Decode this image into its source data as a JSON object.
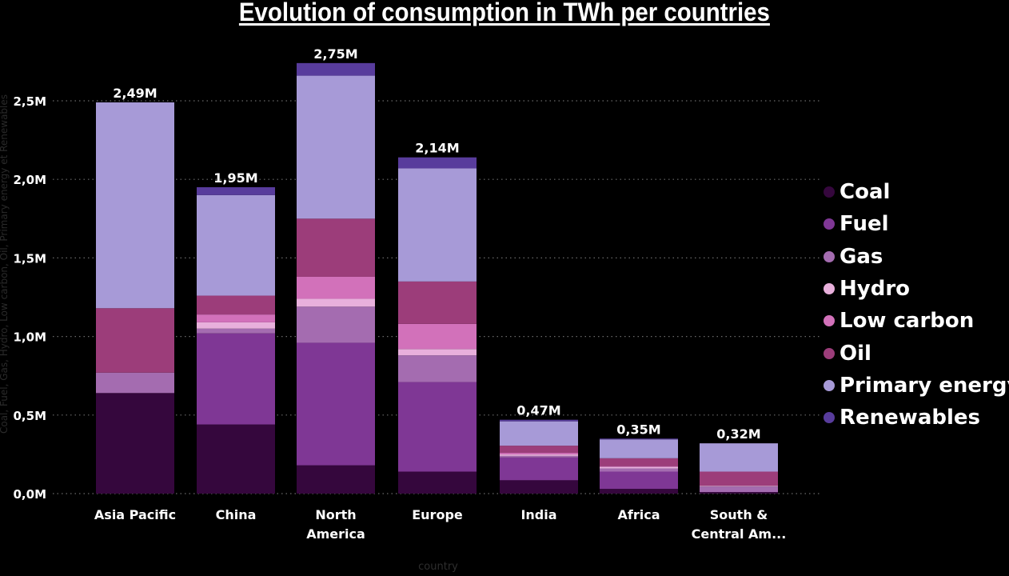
{
  "chart_data": {
    "type": "bar",
    "stacked": true,
    "title": "Evolution of consumption in TWh per countries",
    "xlabel": "country",
    "ylabel": "Coal, Fuel, Gas, Hydro, Low carbon, Oil, Primary energy et Renewables",
    "ylim": [
      0,
      2800000
    ],
    "y_ticks": [
      {
        "value": 0,
        "label": "0,0M"
      },
      {
        "value": 500000,
        "label": "0,5M"
      },
      {
        "value": 1000000,
        "label": "1,0M"
      },
      {
        "value": 1500000,
        "label": "1,5M"
      },
      {
        "value": 2000000,
        "label": "2,0M"
      },
      {
        "value": 2500000,
        "label": "2,5M"
      }
    ],
    "grid": true,
    "legend_position": "right",
    "categories": [
      "Asia Pacific",
      "China",
      "North America",
      "Europe",
      "India",
      "Africa",
      "South & Central Am..."
    ],
    "category_lines": [
      [
        "Asia Pacific"
      ],
      [
        "China"
      ],
      [
        "North",
        "America"
      ],
      [
        "Europe"
      ],
      [
        "India"
      ],
      [
        "Africa"
      ],
      [
        "South &",
        "Central Am..."
      ]
    ],
    "totals": [
      "2,49M",
      "1,95M",
      "2,75M",
      "2,14M",
      "0,47M",
      "0,35M",
      "0,32M"
    ],
    "series": [
      {
        "name": "Coal",
        "color": "#35073d",
        "values": [
          640000,
          440000,
          180000,
          140000,
          85000,
          30000,
          10000
        ]
      },
      {
        "name": "Fuel",
        "color": "#7f3795",
        "values": [
          0,
          580000,
          780000,
          570000,
          145000,
          110000,
          0
        ]
      },
      {
        "name": "Gas",
        "color": "#a46cb0",
        "values": [
          130000,
          30000,
          230000,
          170000,
          10000,
          20000,
          35000
        ]
      },
      {
        "name": "Hydro",
        "color": "#e8b0dc",
        "values": [
          0,
          40000,
          50000,
          40000,
          10000,
          10000,
          5000
        ]
      },
      {
        "name": "Low carbon",
        "color": "#d271ba",
        "values": [
          0,
          50000,
          140000,
          160000,
          10000,
          5000,
          0
        ]
      },
      {
        "name": "Oil",
        "color": "#9c3d7a",
        "values": [
          410000,
          120000,
          370000,
          270000,
          45000,
          50000,
          90000
        ]
      },
      {
        "name": "Primary energy",
        "color": "#a79ad7",
        "values": [
          1310000,
          640000,
          910000,
          720000,
          155000,
          120000,
          180000
        ]
      },
      {
        "name": "Renewables",
        "color": "#583c9c",
        "values": [
          0,
          50000,
          80000,
          70000,
          10000,
          5000,
          0
        ]
      }
    ]
  }
}
